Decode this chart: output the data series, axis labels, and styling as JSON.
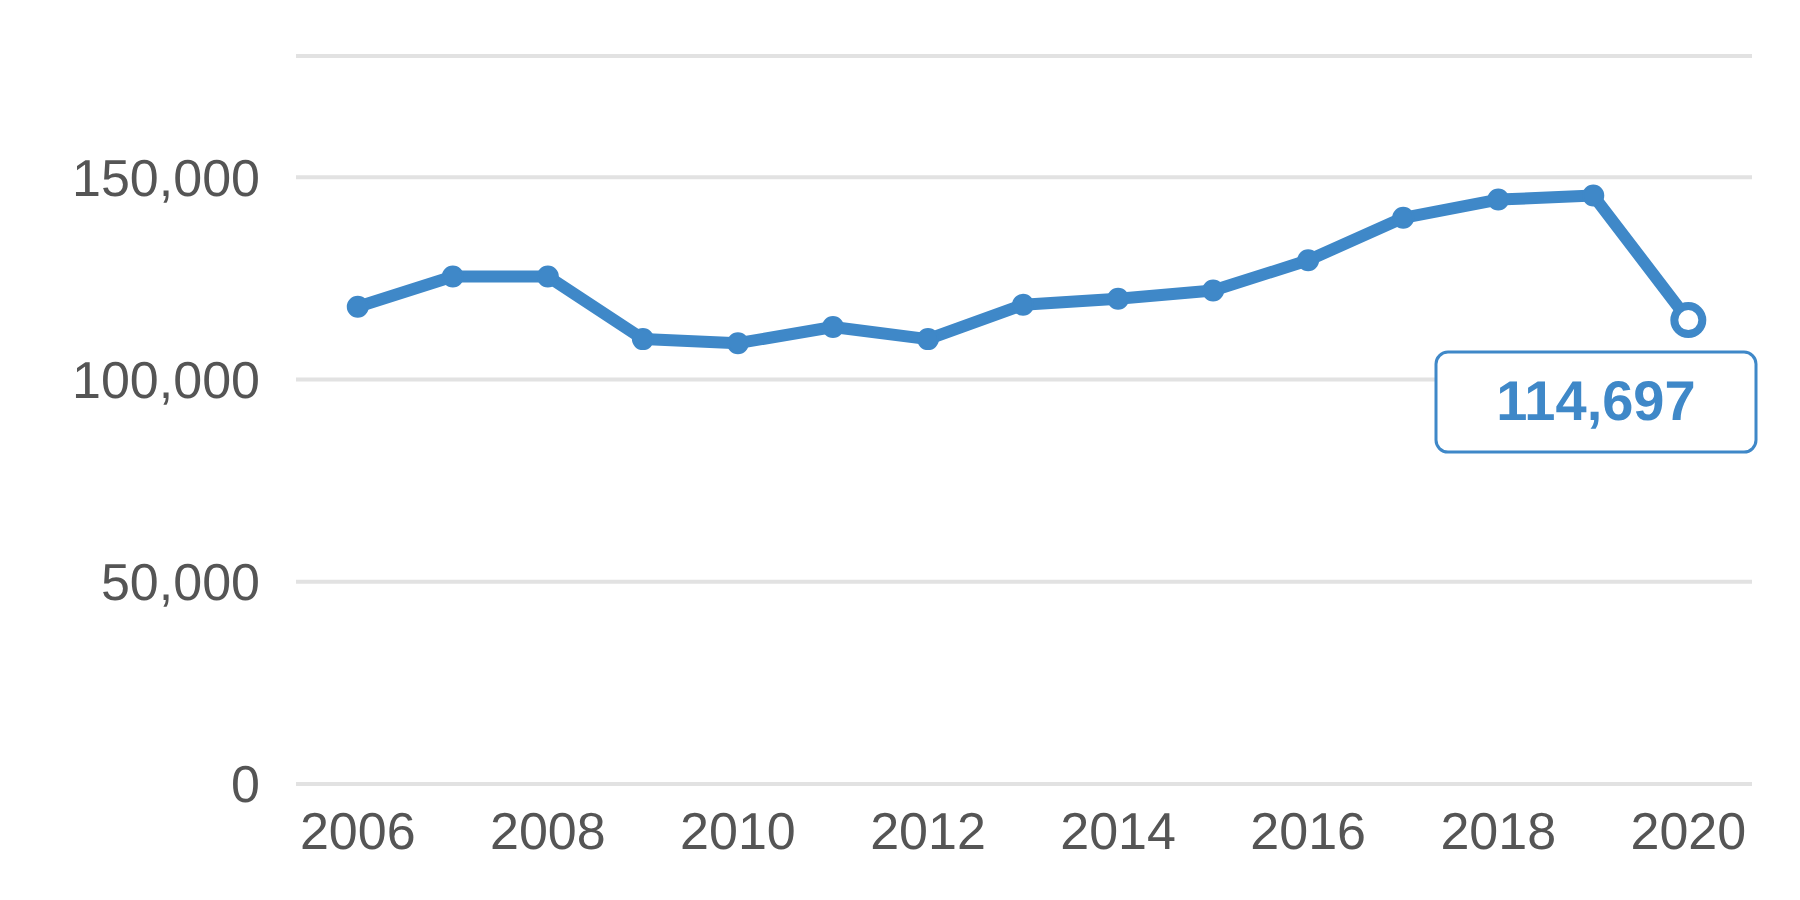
{
  "chart_data": {
    "type": "line",
    "x": [
      2006,
      2007,
      2008,
      2009,
      2010,
      2011,
      2012,
      2013,
      2014,
      2015,
      2016,
      2017,
      2018,
      2019,
      2020
    ],
    "series": [
      {
        "color": "#3f88c8",
        "values": [
          118000,
          125500,
          125500,
          110000,
          109000,
          113000,
          110000,
          118500,
          120000,
          122000,
          129500,
          140000,
          144500,
          145500,
          114697
        ],
        "value_labels": [
          null,
          null,
          null,
          null,
          null,
          null,
          null,
          null,
          null,
          null,
          null,
          null,
          null,
          null,
          "114,697"
        ]
      }
    ],
    "xlim": [
      2005.35,
      2020.67
    ],
    "xticks": [
      2006,
      2008,
      2010,
      2012,
      2014,
      2016,
      2018,
      2020
    ],
    "ylim": [
      0,
      180000
    ],
    "yticks": [
      {
        "value": 0,
        "label": "0"
      },
      {
        "value": 50000,
        "label": "50,000"
      },
      {
        "value": 100000,
        "label": "100,000"
      },
      {
        "value": 150000,
        "label": "150,000"
      }
    ],
    "grid": "y",
    "marker": "circle"
  }
}
